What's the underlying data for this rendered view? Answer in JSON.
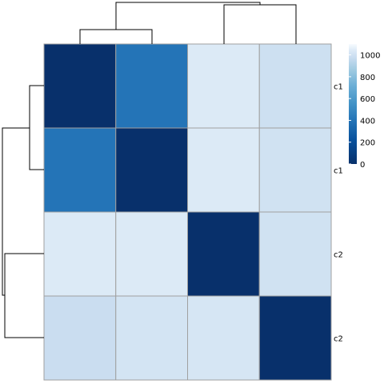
{
  "chart_data": {
    "type": "heatmap",
    "title": "",
    "xlabel": "",
    "ylabel": "",
    "rows": [
      "c1",
      "c1",
      "c2",
      "c2"
    ],
    "values": [
      [
        0,
        400,
        1040,
        990
      ],
      [
        400,
        0,
        1040,
        1000
      ],
      [
        1040,
        1040,
        0,
        1000
      ],
      [
        980,
        1010,
        1020,
        0
      ]
    ],
    "colorscale": {
      "low_color": "#08306b",
      "high_color": "#f7fbff",
      "range": [
        0,
        1100
      ],
      "ticks": [
        0,
        200,
        400,
        600,
        800,
        1000
      ]
    },
    "row_dendrogram": true,
    "column_dendrogram": true,
    "grid": true
  }
}
